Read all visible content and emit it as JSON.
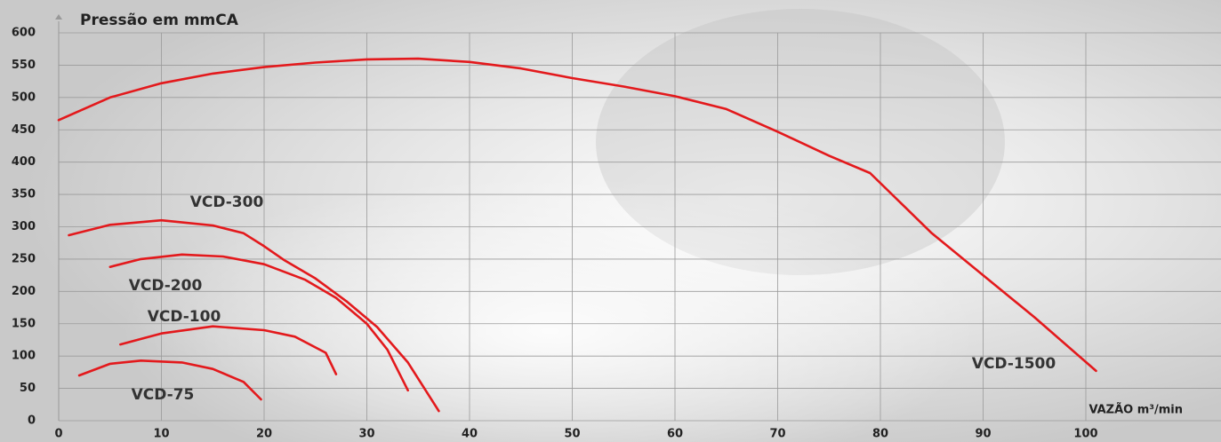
{
  "chart_data": {
    "type": "line",
    "title": "Pressão em mmCA",
    "x_label": "VAZÃO m³/min",
    "xlim": [
      0,
      110
    ],
    "ylim": [
      0,
      600
    ],
    "xticks": [
      0,
      10,
      20,
      30,
      40,
      50,
      60,
      70,
      80,
      90,
      100
    ],
    "yticks": [
      0,
      50,
      100,
      150,
      200,
      250,
      300,
      350,
      400,
      450,
      500,
      550,
      600
    ],
    "grid": true,
    "series": [
      {
        "name": "VCD-1500",
        "color": "#e3191c",
        "x": [
          0,
          5,
          10,
          15,
          20,
          25,
          30,
          35,
          40,
          45,
          50,
          55,
          60,
          65,
          70,
          75,
          79,
          85,
          90,
          95,
          101
        ],
        "values": [
          465,
          500,
          522,
          537,
          547,
          554,
          559,
          560,
          555,
          545,
          530,
          517,
          502,
          482,
          447,
          410,
          383,
          290,
          225,
          160,
          77
        ]
      },
      {
        "name": "VCD-300",
        "color": "#e3191c",
        "x": [
          1,
          5,
          10,
          15,
          18,
          20,
          22,
          25,
          28,
          31,
          34,
          37
        ],
        "values": [
          287,
          303,
          310,
          302,
          290,
          270,
          248,
          220,
          185,
          145,
          90,
          15
        ]
      },
      {
        "name": "VCD-200",
        "color": "#e3191c",
        "x": [
          5,
          8,
          12,
          16,
          20,
          24,
          27,
          30,
          32,
          34
        ],
        "values": [
          238,
          250,
          257,
          254,
          242,
          218,
          190,
          150,
          110,
          47
        ]
      },
      {
        "name": "VCD-100",
        "color": "#e3191c",
        "x": [
          6,
          10,
          15,
          20,
          23,
          26,
          27
        ],
        "values": [
          118,
          135,
          146,
          140,
          130,
          105,
          72
        ]
      },
      {
        "name": "VCD-75",
        "color": "#e3191c",
        "x": [
          2,
          5,
          8,
          12,
          15,
          18,
          19.7
        ],
        "values": [
          70,
          88,
          93,
          90,
          80,
          60,
          33
        ]
      }
    ]
  }
}
